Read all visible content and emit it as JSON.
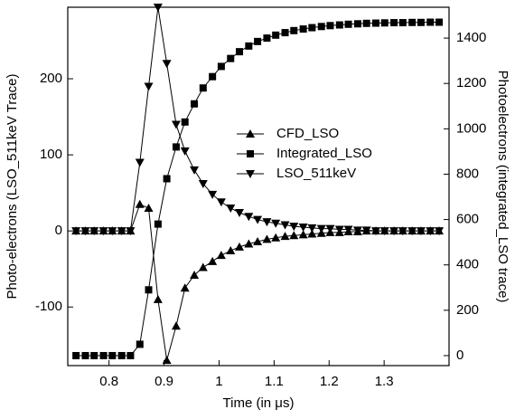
{
  "chart_data": {
    "type": "line",
    "x_label": "Time (in μs)",
    "y_label": "Photo-electrons (LSO_511keV Trace)",
    "y2_label": "Photoelectrons (integrated_LSO trace)",
    "x": [
      0.74,
      0.757,
      0.773,
      0.79,
      0.806,
      0.823,
      0.839,
      0.856,
      0.872,
      0.889,
      0.905,
      0.922,
      0.938,
      0.955,
      0.971,
      0.988,
      1.004,
      1.021,
      1.037,
      1.054,
      1.07,
      1.087,
      1.103,
      1.12,
      1.136,
      1.153,
      1.169,
      1.186,
      1.202,
      1.219,
      1.235,
      1.252,
      1.268,
      1.285,
      1.301,
      1.318,
      1.334,
      1.351,
      1.367,
      1.384,
      1.4
    ],
    "xlim": [
      0.725,
      1.418
    ],
    "xticks": [
      0.8,
      0.9,
      1.0,
      1.1,
      1.2,
      1.3
    ],
    "ylim": [
      -177,
      294
    ],
    "yticks": [
      -100,
      0,
      100,
      200
    ],
    "y2lim": [
      -44,
      1536
    ],
    "y2ticks": [
      0,
      200,
      400,
      600,
      800,
      1000,
      1200,
      1400
    ],
    "series": [
      {
        "name": "CFD_LSO",
        "color": "#000000",
        "marker": "triangle-up",
        "values": [
          0,
          0,
          0,
          0,
          0,
          0,
          0,
          35,
          30,
          -90,
          -170,
          -125,
          -75,
          -58,
          -48,
          -40,
          -32,
          -26,
          -21,
          -17,
          -14,
          -11,
          -9,
          -7,
          -6,
          -5,
          -4,
          -3,
          -2,
          -2,
          -1,
          -1,
          0,
          0,
          0,
          0,
          0,
          0,
          0,
          0,
          0
        ]
      },
      {
        "name": "Integrated_LSO",
        "color": "#000000",
        "marker": "square",
        "axis": "y2",
        "values": [
          0,
          0,
          0,
          0,
          0,
          0,
          0,
          50,
          290,
          580,
          780,
          920,
          1030,
          1110,
          1180,
          1230,
          1275,
          1310,
          1340,
          1365,
          1385,
          1400,
          1413,
          1424,
          1433,
          1440,
          1446,
          1451,
          1455,
          1458,
          1461,
          1463,
          1465,
          1466,
          1467,
          1468,
          1468,
          1469,
          1469,
          1470,
          1470
        ]
      },
      {
        "name": "LSO_511keV",
        "color": "#000000",
        "marker": "triangle-down",
        "values": [
          0,
          0,
          0,
          0,
          0,
          0,
          0,
          90,
          190,
          294,
          220,
          140,
          105,
          80,
          62,
          48,
          38,
          30,
          24,
          19,
          15,
          12,
          10,
          8,
          6,
          5,
          4,
          3,
          3,
          2,
          2,
          1,
          1,
          0,
          0,
          0,
          0,
          0,
          0,
          0,
          0
        ]
      }
    ]
  }
}
